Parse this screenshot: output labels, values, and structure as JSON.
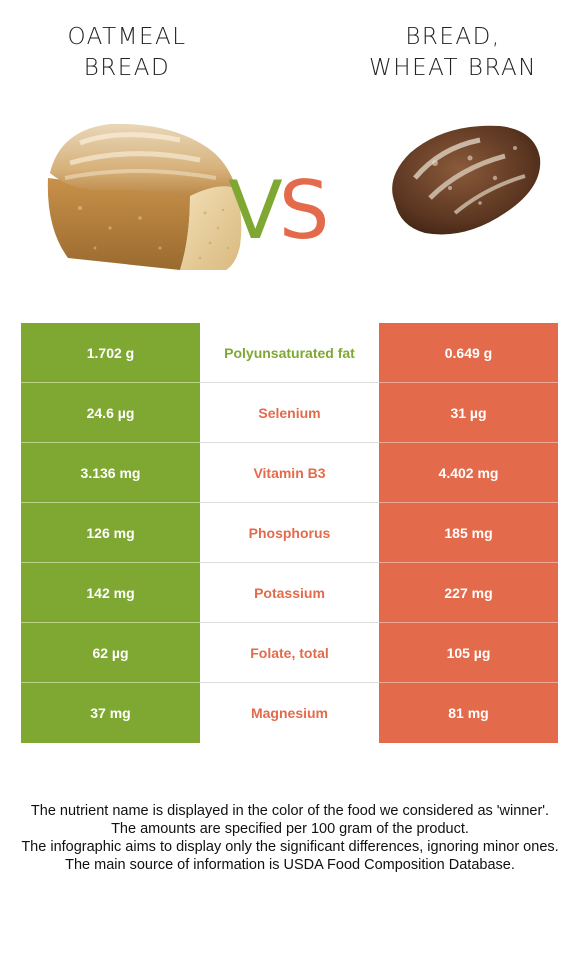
{
  "left_food": {
    "title": "OATMEAL\nBREAD",
    "image_icon": "oatmeal-bread-loaf-image",
    "color": "#7fa832"
  },
  "right_food": {
    "title": "BREAD,\nWHEAT BRAN",
    "image_icon": "wheat-bran-bread-image",
    "color": "#e36b4c"
  },
  "vs": {
    "v": "V",
    "s": "S"
  },
  "rows": [
    {
      "left": "1.702 g",
      "nutrient": "Polyunsaturated fat",
      "right": "0.649 g",
      "winner_color": "#7fa832"
    },
    {
      "left": "24.6 µg",
      "nutrient": "Selenium",
      "right": "31 µg",
      "winner_color": "#e36b4c"
    },
    {
      "left": "3.136 mg",
      "nutrient": "Vitamin B3",
      "right": "4.402 mg",
      "winner_color": "#e36b4c"
    },
    {
      "left": "126 mg",
      "nutrient": "Phosphorus",
      "right": "185 mg",
      "winner_color": "#e36b4c"
    },
    {
      "left": "142 mg",
      "nutrient": "Potassium",
      "right": "227 mg",
      "winner_color": "#e36b4c"
    },
    {
      "left": "62 µg",
      "nutrient": "Folate, total",
      "right": "105 µg",
      "winner_color": "#e36b4c"
    },
    {
      "left": "37 mg",
      "nutrient": "Magnesium",
      "right": "81 mg",
      "winner_color": "#e36b4c"
    }
  ],
  "footer": {
    "line1": "The nutrient name is displayed in the color of the food we considered as 'winner'.",
    "line2": "The amounts are specified per 100 gram of the product.",
    "line3": "The infographic aims to display only the significant differences, ignoring minor ones.",
    "line4": "The main source of information is USDA Food Composition Database."
  }
}
